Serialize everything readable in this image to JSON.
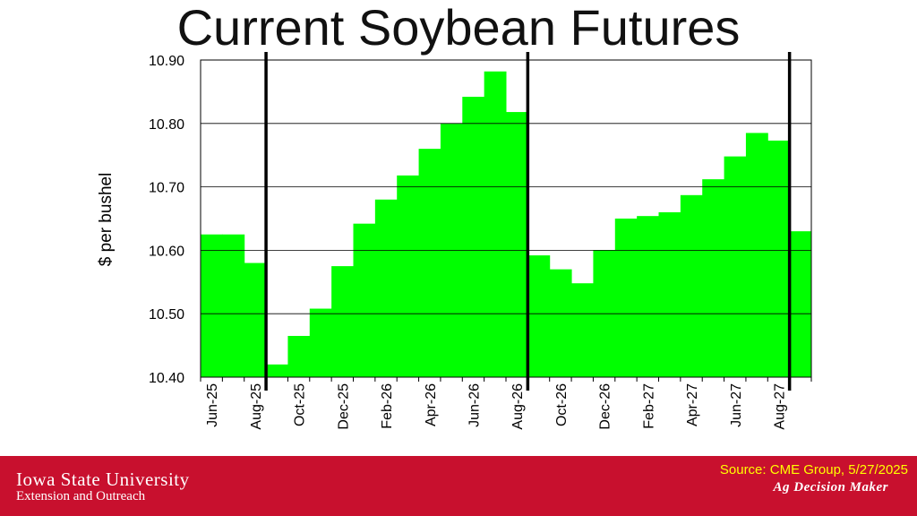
{
  "title": "Current Soybean Futures",
  "footer": {
    "university": "Iowa State University",
    "unit": "Extension and Outreach",
    "source": "Source: CME Group, 5/27/2025",
    "program": "Ag Decision Maker"
  },
  "colors": {
    "bar": "#00ff00",
    "footer": "#c8102e",
    "source_text": "#ffff00"
  },
  "chart_data": {
    "type": "bar",
    "ylabel": "$ per bushel",
    "ylim": [
      10.4,
      10.9
    ],
    "yticks": [
      "10.40",
      "10.50",
      "10.60",
      "10.70",
      "10.80",
      "10.90"
    ],
    "x_tick_labels": [
      "Jun-25",
      "Aug-25",
      "Oct-25",
      "Dec-25",
      "Feb-26",
      "Apr-26",
      "Jun-26",
      "Aug-26",
      "Oct-26",
      "Dec-26",
      "Feb-27",
      "Apr-27",
      "Jun-27",
      "Aug-27"
    ],
    "categories": [
      "Jun-25",
      "Jul-25",
      "Aug-25",
      "Sep-25",
      "Oct-25",
      "Nov-25",
      "Dec-25",
      "Jan-26",
      "Feb-26",
      "Mar-26",
      "Apr-26",
      "May-26",
      "Jun-26",
      "Jul-26",
      "Aug-26",
      "Sep-26",
      "Oct-26",
      "Nov-26",
      "Dec-26",
      "Jan-27",
      "Feb-27",
      "Mar-27",
      "Apr-27",
      "May-27",
      "Jun-27",
      "Jul-27",
      "Aug-27",
      "Sep-27"
    ],
    "values": [
      10.625,
      10.625,
      10.58,
      10.42,
      10.465,
      10.508,
      10.575,
      10.642,
      10.68,
      10.718,
      10.76,
      10.8,
      10.842,
      10.882,
      10.818,
      10.592,
      10.57,
      10.548,
      10.6,
      10.65,
      10.654,
      10.66,
      10.687,
      10.712,
      10.748,
      10.785,
      10.773,
      10.63
    ],
    "vertical_lines_after": [
      "Aug-25",
      "Aug-26",
      "Aug-27"
    ],
    "grid": "horizontal"
  }
}
